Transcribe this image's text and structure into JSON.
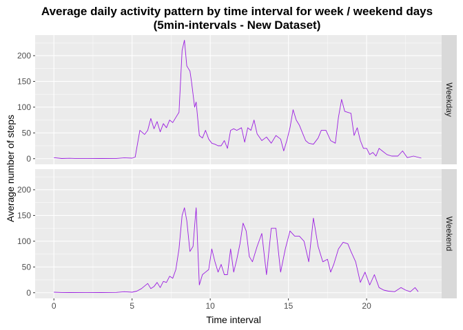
{
  "chart_data": {
    "type": "line",
    "title_line1": "Average daily activity pattern by time interval for week / weekend days",
    "title_line2": "(5min-intervals - New Dataset)",
    "xlabel": "Time interval",
    "ylabel": "Average number of steps",
    "xlim": [
      -1.2,
      24.8
    ],
    "ylim": [
      -11,
      240
    ],
    "xticks": [
      0,
      5,
      10,
      15,
      20
    ],
    "yticks": [
      0,
      50,
      100,
      150,
      200
    ],
    "line_color": "#9A1BE0",
    "panel_bg": "#EBEBEB",
    "strip_bg": "#D9D9D9",
    "series": [
      {
        "name": "Weekday",
        "points": [
          [
            0,
            2
          ],
          [
            0.5,
            0.4
          ],
          [
            1,
            0.8
          ],
          [
            1.5,
            0.2
          ],
          [
            2,
            0.5
          ],
          [
            3,
            0.3
          ],
          [
            4,
            0.5
          ],
          [
            4.5,
            1.5
          ],
          [
            5,
            1
          ],
          [
            5.2,
            3
          ],
          [
            5.5,
            55
          ],
          [
            5.8,
            47
          ],
          [
            6,
            55
          ],
          [
            6.2,
            78
          ],
          [
            6.4,
            58
          ],
          [
            6.6,
            72
          ],
          [
            6.8,
            52
          ],
          [
            7,
            68
          ],
          [
            7.2,
            60
          ],
          [
            7.4,
            75
          ],
          [
            7.6,
            70
          ],
          [
            7.8,
            80
          ],
          [
            8,
            90
          ],
          [
            8.2,
            210
          ],
          [
            8.35,
            230
          ],
          [
            8.5,
            180
          ],
          [
            8.6,
            175
          ],
          [
            8.7,
            170
          ],
          [
            8.8,
            150
          ],
          [
            9,
            100
          ],
          [
            9.1,
            110
          ],
          [
            9.3,
            45
          ],
          [
            9.5,
            40
          ],
          [
            9.7,
            55
          ],
          [
            9.9,
            38
          ],
          [
            10.1,
            30
          ],
          [
            10.3,
            28
          ],
          [
            10.5,
            25
          ],
          [
            10.7,
            25
          ],
          [
            10.9,
            35
          ],
          [
            11.1,
            20
          ],
          [
            11.3,
            55
          ],
          [
            11.5,
            58
          ],
          [
            11.7,
            55
          ],
          [
            12,
            60
          ],
          [
            12.2,
            32
          ],
          [
            12.4,
            60
          ],
          [
            12.6,
            55
          ],
          [
            12.8,
            75
          ],
          [
            13,
            48
          ],
          [
            13.3,
            35
          ],
          [
            13.6,
            42
          ],
          [
            13.9,
            30
          ],
          [
            14.2,
            45
          ],
          [
            14.5,
            38
          ],
          [
            14.7,
            15
          ],
          [
            14.9,
            35
          ],
          [
            15.1,
            60
          ],
          [
            15.3,
            95
          ],
          [
            15.5,
            75
          ],
          [
            15.7,
            65
          ],
          [
            15.9,
            50
          ],
          [
            16.1,
            35
          ],
          [
            16.3,
            30
          ],
          [
            16.6,
            28
          ],
          [
            16.9,
            40
          ],
          [
            17.1,
            55
          ],
          [
            17.4,
            55
          ],
          [
            17.7,
            35
          ],
          [
            18,
            30
          ],
          [
            18.2,
            80
          ],
          [
            18.4,
            115
          ],
          [
            18.6,
            92
          ],
          [
            18.8,
            90
          ],
          [
            19,
            88
          ],
          [
            19.2,
            45
          ],
          [
            19.4,
            60
          ],
          [
            19.6,
            35
          ],
          [
            19.8,
            20
          ],
          [
            20,
            20
          ],
          [
            20.2,
            8
          ],
          [
            20.4,
            12
          ],
          [
            20.6,
            5
          ],
          [
            20.8,
            20
          ],
          [
            21,
            15
          ],
          [
            21.3,
            8
          ],
          [
            21.6,
            5
          ],
          [
            22,
            5
          ],
          [
            22.3,
            15
          ],
          [
            22.6,
            2
          ],
          [
            23,
            5
          ],
          [
            23.5,
            1
          ]
        ]
      },
      {
        "name": "Weekend",
        "points": [
          [
            0,
            1
          ],
          [
            0.5,
            0.5
          ],
          [
            1,
            0.3
          ],
          [
            2,
            0.2
          ],
          [
            3,
            0.4
          ],
          [
            4,
            0.6
          ],
          [
            4.5,
            2
          ],
          [
            5,
            1
          ],
          [
            5.3,
            3
          ],
          [
            5.6,
            8
          ],
          [
            6,
            18
          ],
          [
            6.2,
            8
          ],
          [
            6.4,
            12
          ],
          [
            6.6,
            20
          ],
          [
            6.8,
            10
          ],
          [
            7,
            22
          ],
          [
            7.2,
            20
          ],
          [
            7.4,
            32
          ],
          [
            7.6,
            28
          ],
          [
            7.8,
            45
          ],
          [
            8,
            85
          ],
          [
            8.2,
            150
          ],
          [
            8.35,
            165
          ],
          [
            8.5,
            140
          ],
          [
            8.7,
            80
          ],
          [
            8.9,
            90
          ],
          [
            9,
            130
          ],
          [
            9.1,
            165
          ],
          [
            9.3,
            15
          ],
          [
            9.5,
            35
          ],
          [
            9.7,
            40
          ],
          [
            9.9,
            45
          ],
          [
            10.1,
            85
          ],
          [
            10.3,
            60
          ],
          [
            10.5,
            40
          ],
          [
            10.7,
            55
          ],
          [
            10.9,
            35
          ],
          [
            11.1,
            35
          ],
          [
            11.3,
            85
          ],
          [
            11.5,
            40
          ],
          [
            11.7,
            65
          ],
          [
            11.9,
            95
          ],
          [
            12.1,
            135
          ],
          [
            12.3,
            120
          ],
          [
            12.5,
            70
          ],
          [
            12.7,
            60
          ],
          [
            13,
            90
          ],
          [
            13.3,
            115
          ],
          [
            13.6,
            35
          ],
          [
            13.9,
            125
          ],
          [
            14.2,
            125
          ],
          [
            14.5,
            40
          ],
          [
            14.8,
            85
          ],
          [
            15.1,
            120
          ],
          [
            15.4,
            110
          ],
          [
            15.7,
            110
          ],
          [
            16,
            100
          ],
          [
            16.3,
            60
          ],
          [
            16.6,
            145
          ],
          [
            16.9,
            90
          ],
          [
            17.2,
            60
          ],
          [
            17.5,
            65
          ],
          [
            17.7,
            40
          ],
          [
            17.9,
            55
          ],
          [
            18.2,
            85
          ],
          [
            18.5,
            98
          ],
          [
            18.8,
            95
          ],
          [
            19,
            80
          ],
          [
            19.3,
            60
          ],
          [
            19.6,
            20
          ],
          [
            19.9,
            40
          ],
          [
            20.2,
            15
          ],
          [
            20.5,
            35
          ],
          [
            20.8,
            10
          ],
          [
            21.1,
            5
          ],
          [
            21.4,
            3
          ],
          [
            21.8,
            2
          ],
          [
            22.2,
            10
          ],
          [
            22.5,
            5
          ],
          [
            22.8,
            2
          ],
          [
            23.1,
            10
          ],
          [
            23.3,
            2
          ]
        ]
      }
    ]
  }
}
